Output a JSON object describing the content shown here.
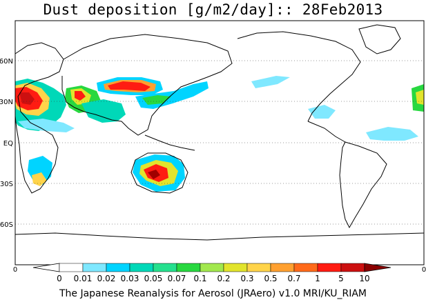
{
  "title": "Dust deposition [g/m2/day]:: 28Feb2013",
  "footer": "The Japanese Reanalysis for Aerosol (JRAero) v1.0 MRI/KU_RIAM",
  "map": {
    "lat_labels": [
      "60N",
      "30N",
      "EQ",
      "30S",
      "60S"
    ],
    "edge_labels": {
      "left": "0",
      "right": "0"
    },
    "land_color": "#ffffff",
    "coast_color": "#000000",
    "grid_style": "dotted"
  },
  "colorbar": {
    "labels": [
      "0",
      "0.01",
      "0.02",
      "0.03",
      "0.05",
      "0.07",
      "0.1",
      "0.2",
      "0.3",
      "0.5",
      "0.7",
      "1",
      "5",
      "10"
    ],
    "colors": [
      "#ffffff",
      "#ffffff",
      "#7fe8ff",
      "#00d4ff",
      "#00d8b8",
      "#25e08e",
      "#28d840",
      "#a2e84e",
      "#e2e42c",
      "#ffd44a",
      "#ffa030",
      "#ff6a1a",
      "#ff1c12",
      "#cc1010",
      "#a00000",
      "#8b0000"
    ],
    "under_color": "#ffffff",
    "over_color": "#8b0000"
  }
}
